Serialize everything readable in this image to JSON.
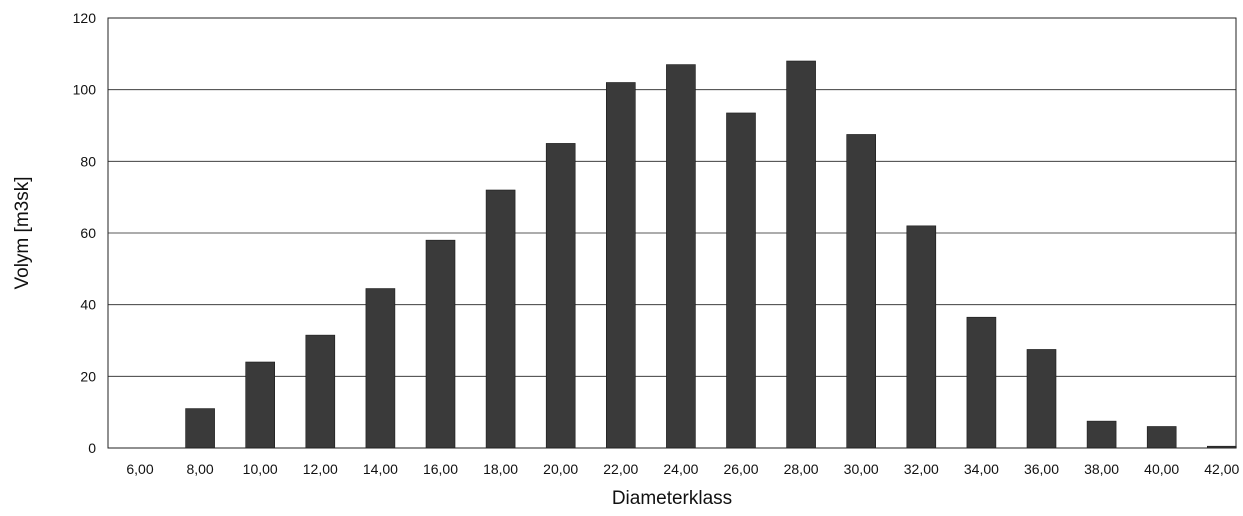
{
  "chart_data": {
    "type": "bar",
    "title": "",
    "xlabel": "Diameterklass",
    "ylabel": "Volym [m3sk]",
    "categories": [
      "6,00",
      "8,00",
      "10,00",
      "12,00",
      "14,00",
      "16,00",
      "18,00",
      "20,00",
      "22,00",
      "24,00",
      "26,00",
      "28,00",
      "30,00",
      "32,00",
      "34,00",
      "36,00",
      "38,00",
      "40,00",
      "42,00"
    ],
    "values": [
      0,
      11,
      24,
      31.5,
      44.5,
      58,
      72,
      85,
      102,
      107,
      93.5,
      108,
      87.5,
      62,
      36.5,
      27.5,
      7.5,
      6,
      0.5
    ],
    "ylim": [
      0,
      120
    ],
    "yticks": [
      0,
      20,
      40,
      60,
      80,
      100,
      120
    ],
    "grid": true,
    "legend": "none",
    "bar_color": "#3a3a3a"
  }
}
